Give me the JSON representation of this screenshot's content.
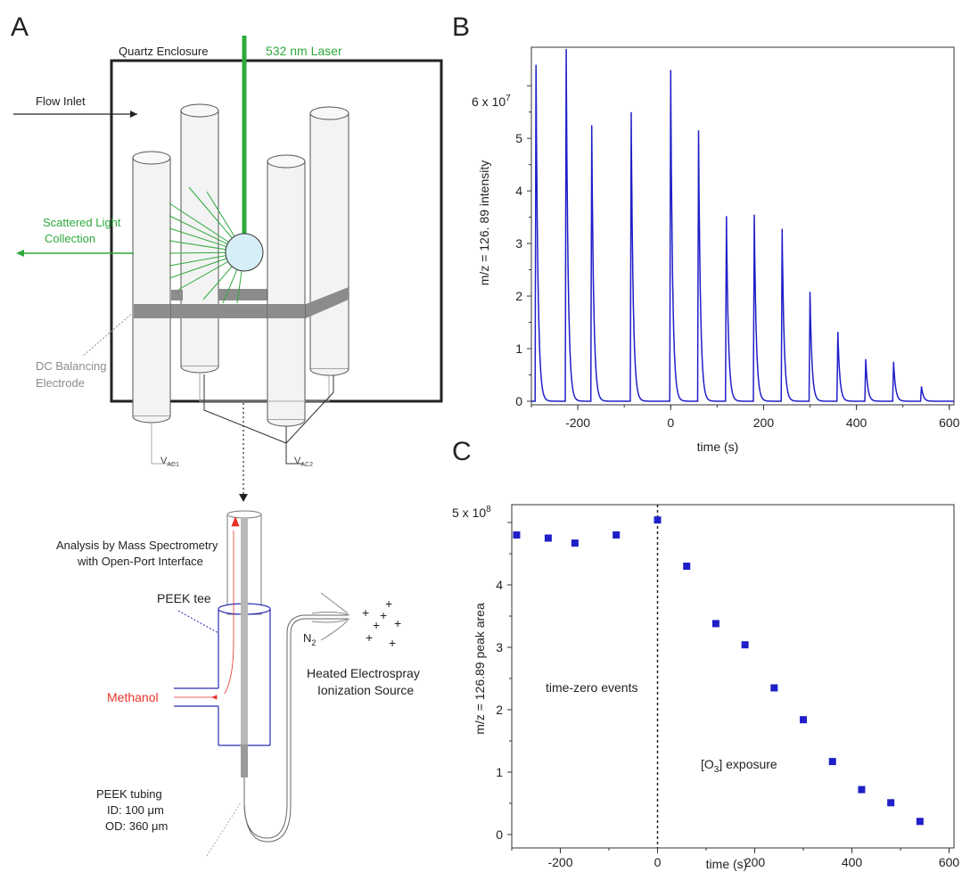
{
  "panel_a": {
    "letter": "A",
    "enclosure_label": "Quartz Enclosure",
    "laser_label": "532 nm Laser",
    "flow_inlet_label": "Flow Inlet",
    "scatter_label_1": "Scattered Light",
    "scatter_label_2": "Collection",
    "dc_label_1": "DC Balancing",
    "dc_label_2": "Electrode",
    "vac1": "V",
    "vac1_sub": "AC1",
    "vac2": "V",
    "vac2_sub": "AC2",
    "analysis_label_1": "Analysis by Mass Spectrometry",
    "analysis_label_2": "with Open-Port Interface",
    "peek_tee_label": "PEEK tee",
    "methanol_label": "Methanol",
    "n2_label": "N",
    "n2_sub": "2",
    "esi_label_1": "Heated Electrospray",
    "esi_label_2": "Ionization Source",
    "tubing_label_1": "PEEK tubing",
    "tubing_label_2": "ID: 100 μm",
    "tubing_label_3": "OD: 360 μm",
    "colors": {
      "laser": "#2eaa3c",
      "methanol": "#e8332a",
      "tee": "#2b2bb0",
      "droplet": "#d6eef8",
      "electrode": "#8c8c8c",
      "grey_text": "#8c8c8c"
    }
  },
  "panel_b": {
    "letter": "B",
    "ylabel": "m/z = 126. 89 intensity",
    "xlabel": "time (s)",
    "y_exponent_label": "6 x 10",
    "y_exponent_sup": "7",
    "y_ticks": [
      "0",
      "1",
      "2",
      "3",
      "4",
      "5"
    ],
    "x_ticks": [
      "-200",
      "0",
      "200",
      "400",
      "600"
    ],
    "color": "#1f1fc8"
  },
  "panel_c": {
    "letter": "C",
    "ylabel": "m/z = 126.89 peak area",
    "xlabel": "time (s)",
    "y_exponent_label": "5 x 10",
    "y_exponent_sup": "8",
    "y_ticks": [
      "0",
      "1",
      "2",
      "3",
      "4"
    ],
    "x_ticks": [
      "-200",
      "0",
      "200",
      "400",
      "600"
    ],
    "annotation_left": "time-zero events",
    "annotation_right_pre": "[O",
    "annotation_right_sub": "3",
    "annotation_right_post": "] exposure",
    "color": "#1f1fc8"
  },
  "chart_data": [
    {
      "type": "line",
      "panel": "B",
      "xlabel": "time (s)",
      "ylabel": "m/z = 126. 89 intensity",
      "xlim": [
        -300,
        610
      ],
      "ylim": [
        0,
        6.8
      ],
      "y_scale_factor": 10000000,
      "peaks": {
        "x": [
          -290,
          -225,
          -170,
          -85,
          0,
          60,
          120,
          180,
          240,
          300,
          360,
          420,
          480,
          540
        ],
        "y": [
          6.4,
          6.7,
          5.25,
          5.5,
          6.3,
          5.15,
          3.52,
          3.55,
          3.28,
          2.08,
          1.32,
          0.8,
          0.75,
          0.28
        ]
      }
    },
    {
      "type": "scatter",
      "panel": "C",
      "xlabel": "time (s)",
      "ylabel": "m/z = 126.89 peak area",
      "xlim": [
        -300,
        610
      ],
      "ylim": [
        -0.1,
        5.4
      ],
      "y_scale_factor": 100000000,
      "x": [
        -290,
        -225,
        -170,
        -85,
        0,
        60,
        120,
        180,
        240,
        300,
        360,
        420,
        480,
        540
      ],
      "y": [
        4.8,
        4.75,
        4.67,
        4.8,
        5.04,
        4.3,
        3.38,
        3.04,
        2.35,
        1.84,
        1.17,
        0.72,
        0.51,
        0.21
      ],
      "vline_x": 0
    }
  ]
}
